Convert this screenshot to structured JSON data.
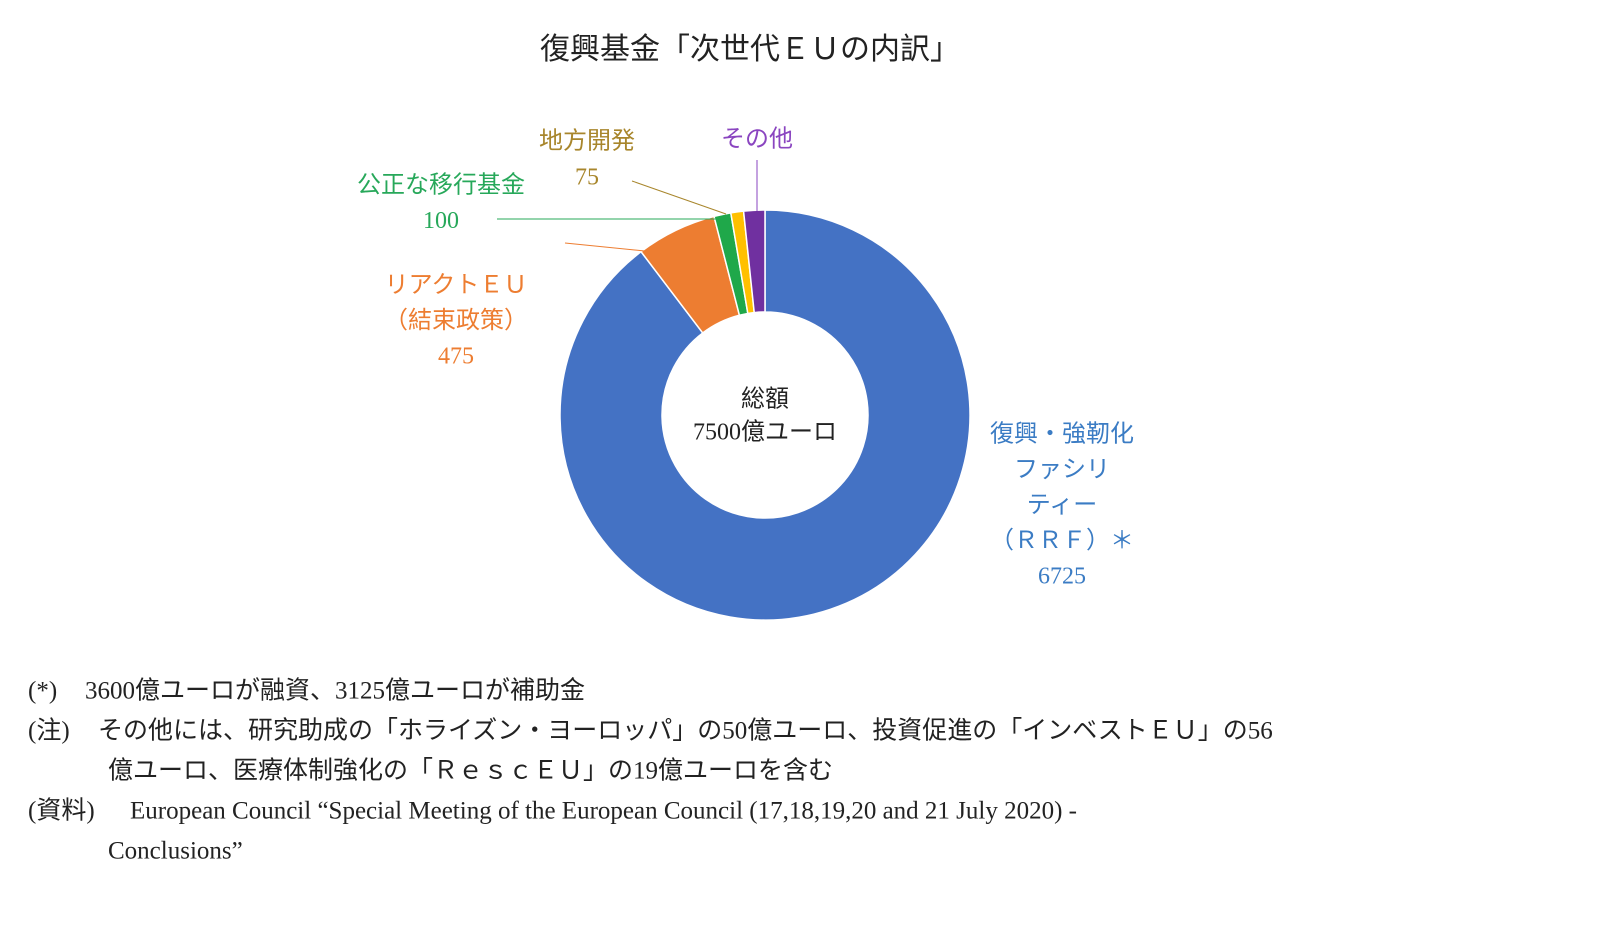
{
  "chart_data": {
    "type": "donut",
    "title": "復興基金「次世代ＥＵの内訳」",
    "center_label": [
      "総額",
      "7500億ユーロ"
    ],
    "categories": [
      [
        "復興・強靭化",
        "ファシリ",
        "ティー",
        "（ＲＲＦ）＊"
      ],
      [
        "リアクトＥＵ",
        "（結束政策）"
      ],
      [
        "公正な移行基金"
      ],
      [
        "地方開発"
      ],
      [
        "その他"
      ]
    ],
    "values": [
      6725,
      475,
      100,
      75,
      125
    ],
    "colors": [
      "#4472c4",
      "#ed7d31",
      "#1fa84a",
      "#ffc000",
      "#7030a0"
    ],
    "label_colors": [
      "#3b7cc4",
      "#ed7d31",
      "#27a85a",
      "#a8862c",
      "#8a45c0"
    ]
  },
  "notes": [
    {
      "marker": "(*)",
      "lines": [
        "3600億ユーロが融資、3125億ユーロが補助金"
      ]
    },
    {
      "marker": "(注)",
      "lines": [
        "その他には、研究助成の「ホライズン・ヨーロッパ」の50億ユーロ、投資促進の「インベストＥＵ」の56",
        "億ユーロ、医療体制強化の「ＲｅｓｃＥＵ」の19億ユーロを含む"
      ]
    },
    {
      "marker": "(資料)",
      "lines": [
        "European Council “Special Meeting of the European Council (17,18,19,20 and 21 July 2020) -",
        "Conclusions”"
      ]
    }
  ]
}
